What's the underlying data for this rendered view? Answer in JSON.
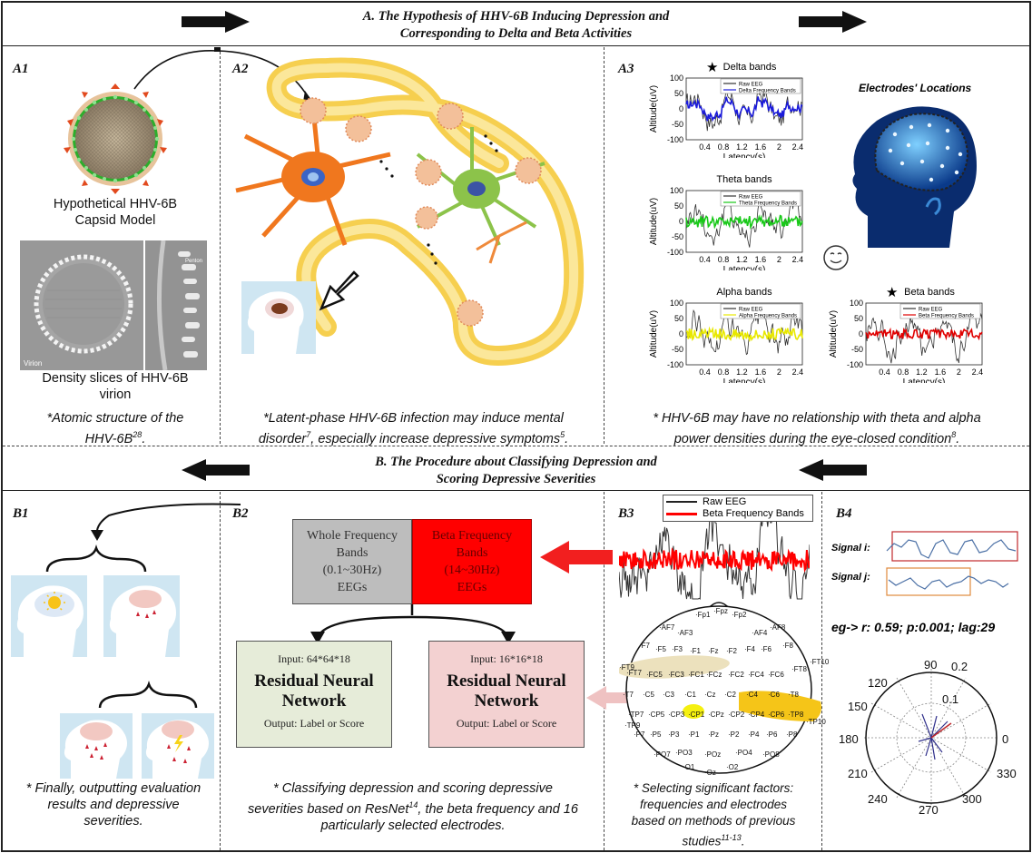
{
  "section_a": {
    "title_line1": "A. The Hypothesis of HHV-6B Inducing Depression and",
    "title_line2": "Corresponding to Delta and Beta Activities"
  },
  "section_b": {
    "title_line1": "B. The Procedure about Classifying Depression and",
    "title_line2": "Scoring Depressive Severities"
  },
  "a1": {
    "label": "A1",
    "capsid_caption_l1": "Hypothetical HHV-6B",
    "capsid_caption_l2": "Capsid Model",
    "virion_caption_l1": "Density slices of HHV-6B",
    "virion_caption_l2": "virion",
    "em_label_left": "Virion",
    "em_label_right": "Penton",
    "note_l1": "*Atomic structure of the",
    "note_l2": "HHV-6B",
    "note_sup": "28",
    "note_end": "."
  },
  "a2": {
    "label": "A2",
    "note_l1": "*Latent-phase HHV-6B infection may induce mental",
    "note_l2a": "disorder",
    "note_sup1": "7",
    "note_l2b": ", especially increase depressive symptoms",
    "note_sup2": "5",
    "note_end": "."
  },
  "a3": {
    "label": "A3",
    "electrodes_title": "Electrodes' Locations",
    "note_l1": "* HHV-6B may have no relationship with theta and alpha",
    "note_l2": "power densities during the eye-closed condition",
    "note_sup": "8",
    "note_end": "."
  },
  "b1": {
    "label": "B1",
    "note_l1": "* Finally, outputting evaluation",
    "note_l2": "results and depressive",
    "note_l3": "severities."
  },
  "b2": {
    "label": "B2",
    "box_whole": [
      "Whole Frequency",
      "Bands",
      "(0.1~30Hz)",
      "EEGs"
    ],
    "box_beta": [
      "Beta Frequency",
      "Bands",
      "(14~30Hz)",
      "EEGs"
    ],
    "resnet_left": {
      "input": "Input: 64*64*18",
      "title1": "Residual Neural",
      "title2": "Network",
      "output": "Output: Label or Score"
    },
    "resnet_right": {
      "input": "Input: 16*16*18",
      "title1": "Residual Neural",
      "title2": "Network",
      "output": "Output: Label or Score"
    },
    "note_l1": "* Classifying depression and scoring depressive",
    "note_l2a": "severities based on ResNet",
    "note_sup": "14",
    "note_l2b": ", the beta frequency and 16",
    "note_l3": "particularly selected electrodes."
  },
  "b3": {
    "label": "B3",
    "legend_raw": "Raw EEG",
    "legend_beta": "Beta Frequency Bands",
    "note_l1": "* Selecting significant factors:",
    "note_l2": "frequencies  and electrodes",
    "note_l3": "based on methods of previous",
    "note_l4": "studies",
    "note_sup": "11-13",
    "note_end": "."
  },
  "b4": {
    "label": "B4",
    "signal_i": "Signal i:",
    "signal_j": "Signal j:",
    "example": "eg-> r: 0.59; p:0.001; lag:29",
    "polar_angles": [
      "90",
      "120",
      "150",
      "180",
      "210",
      "240",
      "270",
      "300",
      "330",
      "0"
    ],
    "polar_radii": [
      "0.2",
      "0.1"
    ]
  },
  "eeg_plots": [
    {
      "title": "Delta bands",
      "legend": [
        "Raw EEG",
        "Delta Frequency Bands"
      ],
      "color": "#1a1adb",
      "star": true
    },
    {
      "title": "Theta bands",
      "legend": [
        "Raw EEG",
        "Theta Frequency Bands"
      ],
      "color": "#18c818",
      "star": false
    },
    {
      "title": "Alpha bands",
      "legend": [
        "Raw EEG",
        "Alpha Frequency Bands"
      ],
      "color": "#e8e800",
      "star": false
    },
    {
      "title": "Beta bands",
      "legend": [
        "Raw EEG",
        "Beta Frequency Bands"
      ],
      "color": "#e00000",
      "star": true
    }
  ],
  "eeg_axes": {
    "ylabel": "Altitude(uV)",
    "xlabel": "Latency(s)",
    "yticks": [
      "100",
      "50",
      "0",
      "-50",
      "-100"
    ],
    "xticks": [
      "0.4",
      "0.8",
      "1.2",
      "1.6",
      "2",
      "2.4"
    ]
  },
  "electrodes": [
    "Fp1",
    "Fpz",
    "Fp2",
    "AF7",
    "AF3",
    "AF4",
    "AF8",
    "F7",
    "F5",
    "F3",
    "F1",
    "Fz",
    "F2",
    "F4",
    "F6",
    "F8",
    "FT9",
    "FT7",
    "FC5",
    "FC3",
    "FC1",
    "FCz",
    "FC2",
    "FC4",
    "FC6",
    "FT8",
    "FT10",
    "T7",
    "C5",
    "C3",
    "C1",
    "Cz",
    "C2",
    "C4",
    "C6",
    "T8",
    "TP9",
    "TP7",
    "CP5",
    "CP3",
    "CP1",
    "CPz",
    "CP2",
    "CP4",
    "CP6",
    "TP8",
    "TP10",
    "P7",
    "P5",
    "P3",
    "P1",
    "Pz",
    "P2",
    "P4",
    "P6",
    "P8",
    "PO7",
    "PO3",
    "POz",
    "PO4",
    "PO8",
    "O1",
    "Oz",
    "O2"
  ],
  "colors": {
    "red": "#ff0000",
    "pink": "#f3d1d1",
    "green_box": "#e6ecd9",
    "gray_box": "#bdbdbd",
    "highlight_yellow": "#f5c518",
    "highlight_tan": "#ece1bd"
  }
}
